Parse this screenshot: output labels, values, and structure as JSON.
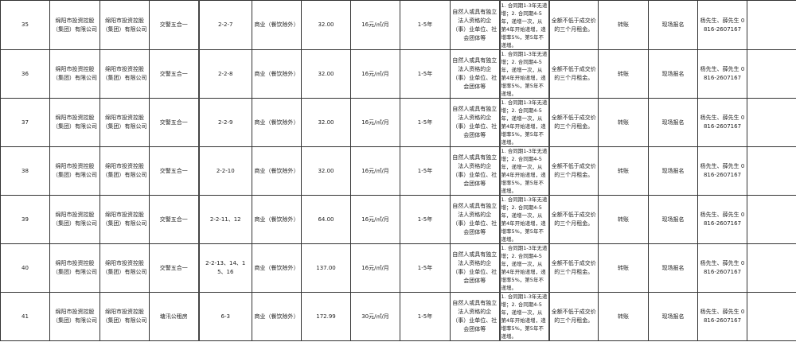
{
  "rows": [
    {
      "no": "35",
      "owner": "绵阳市投资控股（集团）有限公司",
      "operator": "绵阳市投资控股（集团）有限公司",
      "project": "交警五合一",
      "unit": "2-2-7",
      "use": "商业（餐饮除外）",
      "area": "32.00",
      "price": "16元/㎡/月",
      "term": "1-5年",
      "eligibility": "自然人或具有独立法人资格的企（事）业单位、社会团体等",
      "increase": "1. 合同期1-3年无递增；2. 合同期4-5年，递增一次，从第4年开始递增，递增率5%，第5年不递增。",
      "deposit": "全额不低于成交价的三个月租金。",
      "payment": "转账",
      "registration": "现场报名",
      "contact": "杨先生、薛先生 0816-2607167",
      "note": ""
    },
    {
      "no": "36",
      "owner": "绵阳市投资控股（集团）有限公司",
      "operator": "绵阳市投资控股（集团）有限公司",
      "project": "交警五合一",
      "unit": "2-2-8",
      "use": "商业（餐饮除外）",
      "area": "32.00",
      "price": "16元/㎡/月",
      "term": "1-5年",
      "eligibility": "自然人或具有独立法人资格的企（事）业单位、社会团体等",
      "increase": "1. 合同期1-3年无递增；2. 合同期4-5年，递增一次，从第4年开始递增，递增率5%，第5年不递增。",
      "deposit": "全额不低于成交价的三个月租金。",
      "payment": "转账",
      "registration": "现场报名",
      "contact": "杨先生、薛先生 0816-2607167",
      "note": ""
    },
    {
      "no": "37",
      "owner": "绵阳市投资控股（集团）有限公司",
      "operator": "绵阳市投资控股（集团）有限公司",
      "project": "交警五合一",
      "unit": "2-2-9",
      "use": "商业（餐饮除外）",
      "area": "32.00",
      "price": "16元/㎡/月",
      "term": "1-5年",
      "eligibility": "自然人或具有独立法人资格的企（事）业单位、社会团体等",
      "increase": "1. 合同期1-3年无递增；2. 合同期4-5年，递增一次，从第4年开始递增，递增率5%，第5年不递增。",
      "deposit": "全额不低于成交价的三个月租金。",
      "payment": "转账",
      "registration": "现场报名",
      "contact": "杨先生、薛先生 0816-2607167",
      "note": ""
    },
    {
      "no": "38",
      "owner": "绵阳市投资控股（集团）有限公司",
      "operator": "绵阳市投资控股（集团）有限公司",
      "project": "交警五合一",
      "unit": "2-2-10",
      "use": "商业（餐饮除外）",
      "area": "32.00",
      "price": "16元/㎡/月",
      "term": "1-5年",
      "eligibility": "自然人或具有独立法人资格的企（事）业单位、社会团体等",
      "increase": "1. 合同期1-3年无递增；2. 合同期4-5年，递增一次，从第4年开始递增，递增率5%，第5年不递增。",
      "deposit": "全额不低于成交价的三个月租金。",
      "payment": "转账",
      "registration": "现场报名",
      "contact": "杨先生、薛先生 0816-2607167",
      "note": ""
    },
    {
      "no": "39",
      "owner": "绵阳市投资控股（集团）有限公司",
      "operator": "绵阳市投资控股（集团）有限公司",
      "project": "交警五合一",
      "unit": "2-2-11、12",
      "use": "商业（餐饮除外）",
      "area": "64.00",
      "price": "16元/㎡/月",
      "term": "1-5年",
      "eligibility": "自然人或具有独立法人资格的企（事）业单位、社会团体等",
      "increase": "1. 合同期1-3年无递增；2. 合同期4-5年，递增一次，从第4年开始递增，递增率5%，第5年不递增。",
      "deposit": "全额不低于成交价的三个月租金。",
      "payment": "转账",
      "registration": "现场报名",
      "contact": "杨先生、薛先生 0816-2607167",
      "note": ""
    },
    {
      "no": "40",
      "owner": "绵阳市投资控股（集团）有限公司",
      "operator": "绵阳市投资控股（集团）有限公司",
      "project": "交警五合一",
      "unit": "2-2-13、14、15、16",
      "use": "商业（餐饮除外）",
      "area": "137.00",
      "price": "16元/㎡/月",
      "term": "1-5年",
      "eligibility": "自然人或具有独立法人资格的企（事）业单位、社会团体等",
      "increase": "1. 合同期1-3年无递增；2. 合同期4-5年，递增一次，从第4年开始递增，递增率5%，第5年不递增。",
      "deposit": "全额不低于成交价的三个月租金。",
      "payment": "转账",
      "registration": "现场报名",
      "contact": "杨先生、薛先生 0816-2607167",
      "note": ""
    },
    {
      "no": "41",
      "owner": "绵阳市投资控股（集团）有限公司",
      "operator": "绵阳市投资控股（集团）有限公司",
      "project": "塘汛公租房",
      "unit": "6-3",
      "use": "商业（餐饮除外）",
      "area": "172.99",
      "price": "30元/㎡/月",
      "term": "1-5年",
      "eligibility": "自然人或具有独立法人资格的企（事）业单位、社会团体等",
      "increase": "1. 合同期1-3年无递增；2. 合同期4-5年，递增一次，从第4年开始递增，递增率5%，第5年不递增。",
      "deposit": "全额不低于成交价的三个月租金。",
      "payment": "转账",
      "registration": "现场报名",
      "contact": "杨先生、薛先生 0816-2607167",
      "note": ""
    }
  ]
}
